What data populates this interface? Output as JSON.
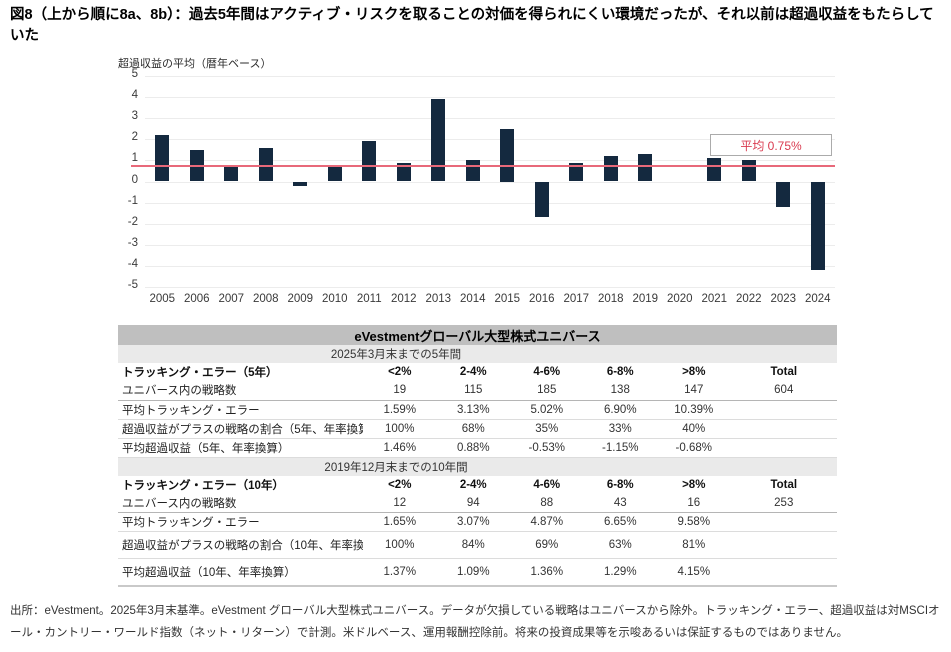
{
  "figure_title": "図8（上から順に8a、8b）：過去5年間はアクティブ・リスクを取ることの対価を得られにくい環境だったが、それ以前は超過収益をもたらしていた",
  "chart_data": {
    "type": "bar",
    "title": "超過収益の平均（暦年ベース）",
    "categories": [
      "2005",
      "2006",
      "2007",
      "2008",
      "2009",
      "2010",
      "2011",
      "2012",
      "2013",
      "2014",
      "2015",
      "2016",
      "2017",
      "2018",
      "2019",
      "2020",
      "2021",
      "2022",
      "2023",
      "2024"
    ],
    "values": [
      2.2,
      1.5,
      0.8,
      1.6,
      -0.2,
      0.7,
      1.9,
      0.9,
      3.9,
      1.0,
      2.5,
      -1.7,
      0.9,
      1.2,
      1.3,
      0,
      1.1,
      1.0,
      -1.2,
      -4.2
    ],
    "xlabel": "",
    "ylabel": "",
    "ylim": [
      -5,
      5
    ],
    "yticks": [
      5,
      4,
      3,
      2,
      1,
      0,
      -1,
      -2,
      -3,
      -4,
      -5
    ],
    "grid": true,
    "bar_color": "#14293f",
    "average_line": {
      "value": 0.75,
      "label": "平均 0.75%",
      "line_color": "#e8697a",
      "text_color": "#d93a4f"
    }
  },
  "table": {
    "title": "eVestmentグローバル大型株式ユニバース",
    "col_headers": [
      "<2%",
      "2-4%",
      "4-6%",
      "6-8%",
      ">8%",
      "Total"
    ],
    "sections": [
      {
        "period": "2025年3月末までの5年間",
        "header_label": "トラッキング・エラー（5年）",
        "rows": [
          {
            "label": "ユニバース内の戦略数",
            "values": [
              "19",
              "115",
              "185",
              "138",
              "147",
              "604"
            ],
            "strong": true
          },
          {
            "label": "平均トラッキング・エラー",
            "values": [
              "1.59%",
              "3.13%",
              "5.02%",
              "6.90%",
              "10.39%",
              ""
            ]
          },
          {
            "label": "超過収益がプラスの戦略の割合（5年、年率換算）",
            "values": [
              "100%",
              "68%",
              "35%",
              "33%",
              "40%",
              ""
            ]
          },
          {
            "label": "平均超過収益（5年、年率換算）",
            "values": [
              "1.46%",
              "0.88%",
              "-0.53%",
              "-1.15%",
              "-0.68%",
              ""
            ]
          }
        ]
      },
      {
        "period": "2019年12月末までの10年間",
        "header_label": "トラッキング・エラー（10年）",
        "rows": [
          {
            "label": "ユニバース内の戦略数",
            "values": [
              "12",
              "94",
              "88",
              "43",
              "16",
              "253"
            ],
            "strong": true
          },
          {
            "label": "平均トラッキング・エラー",
            "values": [
              "1.65%",
              "3.07%",
              "4.87%",
              "6.65%",
              "9.58%",
              ""
            ]
          },
          {
            "label": "超過収益がプラスの戦略の割合（10年、年率換算）",
            "values": [
              "100%",
              "84%",
              "69%",
              "63%",
              "81%",
              ""
            ],
            "tall": true
          },
          {
            "label": "平均超過収益（10年、年率換算）",
            "values": [
              "1.37%",
              "1.09%",
              "1.36%",
              "1.29%",
              "4.15%",
              ""
            ],
            "tall": true,
            "last": true
          }
        ]
      }
    ]
  },
  "footer": "出所：eVestment。2025年3月末基準。eVestment グローバル大型株式ユニバース。データが欠損している戦略はユニバースから除外。トラッキング・エラー、超過収益は対MSCIオール・カントリー・ワールド指数（ネット・リターン）で計測。米ドルベース、運用報酬控除前。将来の投資成果等を示唆あるいは保証するものではありません。"
}
